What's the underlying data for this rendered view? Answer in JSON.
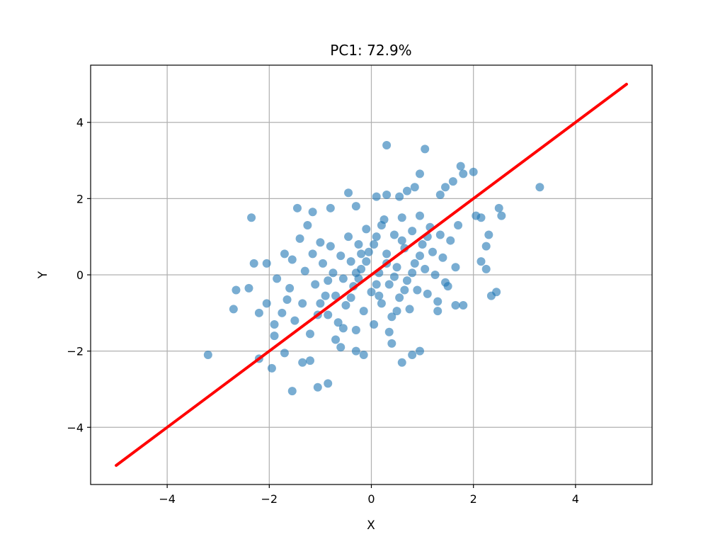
{
  "chart_data": {
    "type": "scatter",
    "title": "PC1: 72.9%",
    "xlabel": "X",
    "ylabel": "Y",
    "xlim": [
      -5.5,
      5.5
    ],
    "ylim": [
      -5.5,
      5.5
    ],
    "xticks": [
      -4,
      -2,
      0,
      2,
      4
    ],
    "yticks": [
      -4,
      -2,
      0,
      2,
      4
    ],
    "grid": true,
    "colors": {
      "points": "#1f77b4",
      "line": "#ff0000",
      "grid": "#b0b0b0"
    },
    "principal_component_line": {
      "x": [
        -5,
        5
      ],
      "y": [
        -5,
        5
      ]
    },
    "series": [
      {
        "points": [
          [
            0.3,
            3.4
          ],
          [
            1.05,
            3.3
          ],
          [
            -1.55,
            -3.05
          ],
          [
            -1.05,
            -2.95
          ],
          [
            -0.85,
            -2.85
          ],
          [
            -3.2,
            -2.1
          ],
          [
            3.3,
            2.3
          ],
          [
            -2.35,
            1.5
          ],
          [
            2.5,
            1.75
          ],
          [
            2.55,
            1.55
          ],
          [
            2.45,
            -0.45
          ],
          [
            2.35,
            -0.55
          ],
          [
            1.75,
            2.85
          ],
          [
            2.0,
            2.7
          ],
          [
            1.8,
            2.65
          ],
          [
            0.95,
            2.65
          ],
          [
            -2.7,
            -0.9
          ],
          [
            -2.65,
            -0.4
          ],
          [
            -2.3,
            0.3
          ],
          [
            -2.4,
            -0.35
          ],
          [
            -2.05,
            0.3
          ],
          [
            -2.2,
            -2.2
          ],
          [
            -1.95,
            -2.45
          ],
          [
            -1.35,
            -2.3
          ],
          [
            -1.2,
            -2.25
          ],
          [
            0.6,
            -2.3
          ],
          [
            0.8,
            -2.1
          ],
          [
            0.95,
            -2.0
          ],
          [
            -0.15,
            -2.1
          ],
          [
            0.4,
            -1.8
          ],
          [
            -0.6,
            -1.9
          ],
          [
            -0.3,
            -2.0
          ],
          [
            -1.7,
            -2.05
          ],
          [
            1.65,
            -0.8
          ],
          [
            1.8,
            -0.8
          ],
          [
            1.3,
            -0.95
          ],
          [
            2.25,
            0.15
          ],
          [
            2.15,
            0.35
          ],
          [
            2.25,
            0.75
          ],
          [
            2.3,
            1.05
          ],
          [
            2.15,
            1.5
          ],
          [
            2.05,
            1.55
          ],
          [
            1.45,
            2.3
          ],
          [
            1.35,
            2.1
          ],
          [
            1.6,
            2.45
          ],
          [
            0.55,
            2.05
          ],
          [
            0.3,
            2.1
          ],
          [
            0.1,
            2.05
          ],
          [
            -0.45,
            2.15
          ],
          [
            -1.45,
            1.75
          ],
          [
            -0.8,
            1.75
          ],
          [
            -1.15,
            1.65
          ],
          [
            -0.3,
            1.8
          ],
          [
            0.85,
            2.3
          ],
          [
            0.7,
            2.2
          ],
          [
            -1.9,
            -1.6
          ],
          [
            -1.75,
            -1.0
          ],
          [
            -1.6,
            -0.35
          ],
          [
            -1.55,
            0.4
          ],
          [
            -1.4,
            0.95
          ],
          [
            -1.25,
            1.3
          ],
          [
            -1.0,
            0.85
          ],
          [
            -0.85,
            -1.05
          ],
          [
            -0.7,
            -0.55
          ],
          [
            -0.55,
            -0.1
          ],
          [
            -0.4,
            0.35
          ],
          [
            -0.25,
            0.8
          ],
          [
            -0.1,
            1.2
          ],
          [
            0.05,
            -1.3
          ],
          [
            0.2,
            -0.75
          ],
          [
            0.35,
            -0.25
          ],
          [
            0.5,
            0.2
          ],
          [
            0.65,
            0.7
          ],
          [
            0.8,
            1.15
          ],
          [
            0.95,
            1.55
          ],
          [
            1.1,
            -0.5
          ],
          [
            1.25,
            0.0
          ],
          [
            1.4,
            0.45
          ],
          [
            1.55,
            0.9
          ],
          [
            1.7,
            1.3
          ],
          [
            -1.2,
            -1.55
          ],
          [
            -1.05,
            -1.05
          ],
          [
            -0.9,
            -0.55
          ],
          [
            -0.75,
            0.05
          ],
          [
            -0.6,
            0.5
          ],
          [
            -0.45,
            1.0
          ],
          [
            -0.3,
            -1.45
          ],
          [
            -0.15,
            -0.95
          ],
          [
            0.0,
            -0.45
          ],
          [
            0.15,
            0.05
          ],
          [
            0.3,
            0.55
          ],
          [
            0.45,
            1.05
          ],
          [
            0.6,
            1.5
          ],
          [
            0.75,
            -0.9
          ],
          [
            0.9,
            -0.4
          ],
          [
            1.05,
            0.15
          ],
          [
            1.2,
            0.6
          ],
          [
            1.35,
            1.05
          ],
          [
            1.5,
            -0.3
          ],
          [
            1.65,
            0.2
          ],
          [
            -1.5,
            -1.2
          ],
          [
            -1.35,
            -0.75
          ],
          [
            -1.1,
            -0.25
          ],
          [
            -0.95,
            0.3
          ],
          [
            -0.8,
            0.75
          ],
          [
            -0.65,
            -1.25
          ],
          [
            -0.5,
            -0.8
          ],
          [
            -0.35,
            -0.3
          ],
          [
            -0.2,
            0.15
          ],
          [
            -0.05,
            0.6
          ],
          [
            0.1,
            1.0
          ],
          [
            0.25,
            1.45
          ],
          [
            0.4,
            -1.1
          ],
          [
            0.55,
            -0.6
          ],
          [
            0.7,
            -0.15
          ],
          [
            0.85,
            0.3
          ],
          [
            1.0,
            0.8
          ],
          [
            1.15,
            1.25
          ],
          [
            1.3,
            -0.7
          ],
          [
            1.45,
            -0.2
          ],
          [
            -1.65,
            -0.65
          ],
          [
            -1.3,
            0.1
          ],
          [
            -1.15,
            0.55
          ],
          [
            -0.7,
            -1.7
          ],
          [
            -0.55,
            -1.4
          ],
          [
            -0.4,
            -0.6
          ],
          [
            -0.25,
            -0.1
          ],
          [
            -0.1,
            0.35
          ],
          [
            0.05,
            0.8
          ],
          [
            0.2,
            1.3
          ],
          [
            0.35,
            -1.5
          ],
          [
            0.5,
            -0.95
          ],
          [
            0.65,
            -0.4
          ],
          [
            0.8,
            0.05
          ],
          [
            0.95,
            0.5
          ],
          [
            1.1,
            1.0
          ],
          [
            0.15,
            -0.55
          ],
          [
            0.3,
            0.3
          ],
          [
            -0.2,
            0.55
          ],
          [
            0.6,
            0.9
          ],
          [
            -0.85,
            -0.15
          ],
          [
            -1.0,
            -0.75
          ],
          [
            0.45,
            -0.05
          ],
          [
            -0.3,
            0.05
          ],
          [
            0.1,
            -0.25
          ],
          [
            -2.05,
            -0.75
          ],
          [
            -1.9,
            -1.3
          ],
          [
            -1.85,
            -0.1
          ],
          [
            -1.7,
            0.55
          ],
          [
            -2.2,
            -1.0
          ]
        ]
      }
    ]
  }
}
